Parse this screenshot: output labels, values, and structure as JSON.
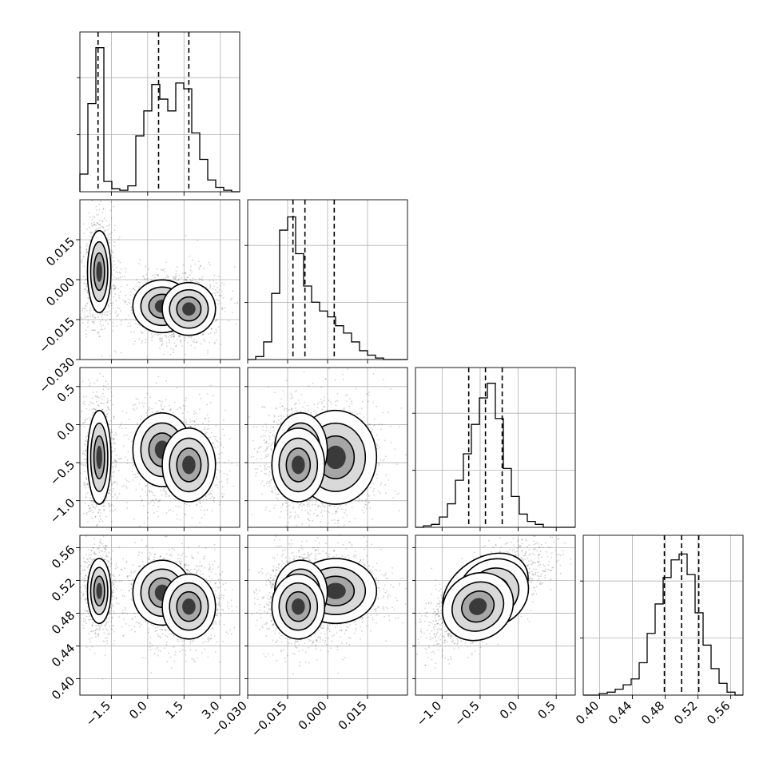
{
  "chart_data": {
    "type": "corner",
    "grid": true,
    "parameters": [
      {
        "range": [
          -2.8,
          3.8
        ],
        "ticks": [
          -1.5,
          0.0,
          1.5,
          3.0
        ],
        "tick_labels": [
          "−1.5",
          "0.0",
          "1.5",
          "3.0"
        ],
        "quantiles": [
          -2.05,
          0.45,
          1.7
        ]
      },
      {
        "range": [
          -0.03,
          0.03
        ],
        "ticks": [
          -0.03,
          -0.015,
          0.0,
          0.015
        ],
        "tick_labels": [
          "−0.030",
          "−0.015",
          "0.000",
          "0.015"
        ],
        "quantiles": [
          -0.013,
          -0.0085,
          0.0025
        ]
      },
      {
        "range": [
          -1.35,
          0.75
        ],
        "ticks": [
          -1.0,
          -0.5,
          0.0,
          0.5
        ],
        "tick_labels": [
          "−1.0",
          "−0.5",
          "0.0",
          "0.5"
        ],
        "quantiles": [
          -0.65,
          -0.43,
          -0.21
        ]
      },
      {
        "range": [
          0.38,
          0.575
        ],
        "ticks": [
          0.4,
          0.44,
          0.48,
          0.52,
          0.56
        ],
        "tick_labels": [
          "0.40",
          "0.44",
          "0.48",
          "0.52",
          "0.56"
        ],
        "quantiles": [
          0.479,
          0.5,
          0.521
        ]
      }
    ],
    "histograms": [
      [
        0.12,
        0.6,
        0.98,
        0.07,
        0.02,
        0.01,
        0.04,
        0.38,
        0.55,
        0.73,
        0.63,
        0.55,
        0.74,
        0.7,
        0.4,
        0.22,
        0.08,
        0.03,
        0.01,
        0.0
      ],
      [
        0.0,
        0.02,
        0.12,
        0.45,
        0.88,
        0.97,
        0.72,
        0.5,
        0.39,
        0.33,
        0.29,
        0.23,
        0.18,
        0.12,
        0.06,
        0.03,
        0.01,
        0.0,
        0.0,
        0.0
      ],
      [
        0.0,
        0.01,
        0.02,
        0.07,
        0.16,
        0.32,
        0.5,
        0.7,
        0.88,
        0.98,
        0.74,
        0.4,
        0.21,
        0.09,
        0.04,
        0.02,
        0.0,
        0.0,
        0.0,
        0.0
      ],
      [
        0.0,
        0.0,
        0.01,
        0.02,
        0.04,
        0.07,
        0.11,
        0.22,
        0.42,
        0.62,
        0.8,
        0.92,
        0.96,
        0.82,
        0.56,
        0.34,
        0.18,
        0.08,
        0.02,
        0.0
      ]
    ],
    "clusters": [
      {
        "w": 0.4,
        "mu": [
          -2.0,
          0.003,
          -0.43,
          0.507
        ],
        "sd": [
          0.22,
          0.007,
          0.28,
          0.018
        ]
      },
      {
        "w": 0.32,
        "mu": [
          0.6,
          -0.01,
          -0.33,
          0.505
        ],
        "sd": [
          0.55,
          0.0045,
          0.22,
          0.018
        ]
      },
      {
        "w": 0.28,
        "mu": [
          1.7,
          -0.011,
          -0.53,
          0.488
        ],
        "sd": [
          0.5,
          0.0045,
          0.22,
          0.018
        ]
      }
    ]
  }
}
